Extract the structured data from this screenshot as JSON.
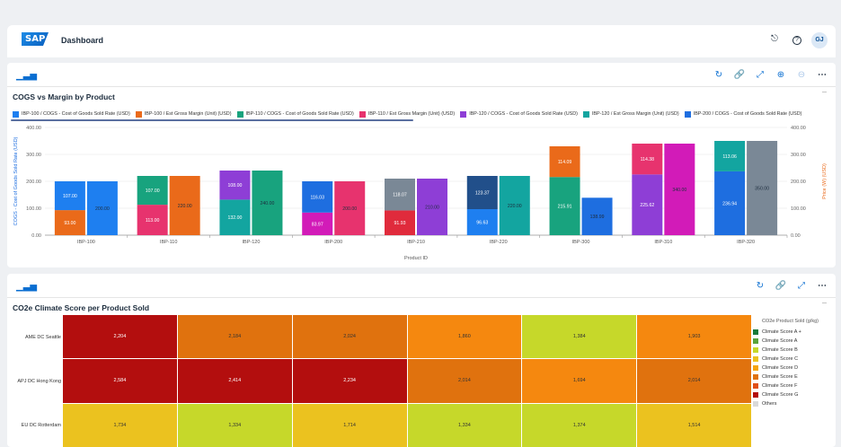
{
  "shell": {
    "logo": "SAP",
    "title": "Dashboard",
    "help_icon": "?",
    "avatar": "GJ"
  },
  "card1": {
    "title": "COGS vs Margin by Product",
    "toolbar_icons": [
      "refresh-icon",
      "link-icon",
      "expand-icon",
      "zoom-in-icon",
      "zoom-out-icon",
      "more-icon"
    ],
    "legend": [
      {
        "label": "IBP-100 / COGS - Cost of Goods Sold Rate (USD)",
        "color": "#1e7ff0"
      },
      {
        "label": "IBP-100 / Est Gross Margin (Unit) (USD)",
        "color": "#ea6a1a"
      },
      {
        "label": "IBP-110 / COGS - Cost of Goods Sold Rate (USD)",
        "color": "#18a37e"
      },
      {
        "label": "IBP-110 / Est Gross Margin (Unit) (USD)",
        "color": "#e7336e"
      },
      {
        "label": "IBP-120 / COGS - Cost of Goods Sold Rate (USD)",
        "color": "#8e3ed6"
      },
      {
        "label": "IBP-120 / Est Gross Margin (Unit) (USD)",
        "color": "#13a5a0"
      },
      {
        "label": "IBP-200 / COGS - Cost of Goods Sold Rate (USD)",
        "color": "#1e6ee0"
      }
    ]
  },
  "chart_data": {
    "type": "bar",
    "categories": [
      "IBP-100",
      "IBP-110",
      "IBP-120",
      "IBP-200",
      "IBP-210",
      "IBP-220",
      "IBP-300",
      "IBP-310",
      "IBP-320"
    ],
    "xlabel": "Product ID",
    "ylabel": "COGS - Cost of Goods Sold Rate (USD)",
    "y2label": "Price (W) (USD)",
    "ylim": [
      0,
      400
    ],
    "y2lim": [
      0,
      400
    ],
    "yticks": [
      "0.00",
      "100.00",
      "200.00",
      "300.00",
      "400.00"
    ],
    "stacked_bars": [
      {
        "category": "IBP-100",
        "segments": [
          {
            "value": 93.0,
            "label": "93.00",
            "color": "#ea6a1a"
          },
          {
            "value": 107.0,
            "label": "107.00",
            "color": "#1e7ff0"
          }
        ]
      },
      {
        "category": "IBP-110",
        "segments": [
          {
            "value": 113.0,
            "label": "113.00",
            "color": "#e7336e"
          },
          {
            "value": 107.0,
            "label": "107.00",
            "color": "#18a37e"
          }
        ]
      },
      {
        "category": "IBP-120",
        "segments": [
          {
            "value": 132.0,
            "label": "132.00",
            "color": "#13a5a0"
          },
          {
            "value": 108.0,
            "label": "108.00",
            "color": "#8e3ed6"
          }
        ]
      },
      {
        "category": "IBP-200",
        "segments": [
          {
            "value": 83.97,
            "label": "83.97",
            "color": "#d21bb8"
          },
          {
            "value": 116.03,
            "label": "116.03",
            "color": "#1e6ee0"
          }
        ]
      },
      {
        "category": "IBP-210",
        "segments": [
          {
            "value": 91.93,
            "label": "91.93",
            "color": "#e02b3c"
          },
          {
            "value": 118.07,
            "label": "118.07",
            "color": "#7a8896"
          }
        ]
      },
      {
        "category": "IBP-220",
        "segments": [
          {
            "value": 96.63,
            "label": "96.63",
            "color": "#1e7ff0"
          },
          {
            "value": 123.37,
            "label": "123.37",
            "color": "#214f8a"
          }
        ]
      },
      {
        "category": "IBP-300",
        "segments": [
          {
            "value": 215.91,
            "label": "215.91",
            "color": "#18a37e"
          },
          {
            "value": 114.09,
            "label": "114.09",
            "color": "#ea6a1a"
          }
        ]
      },
      {
        "category": "IBP-310",
        "segments": [
          {
            "value": 225.62,
            "label": "225.62",
            "color": "#8e3ed6"
          },
          {
            "value": 114.38,
            "label": "114.38",
            "color": "#e7336e"
          }
        ]
      },
      {
        "category": "IBP-320",
        "segments": [
          {
            "value": 236.94,
            "label": "236.94",
            "color": "#1e6ee0"
          },
          {
            "value": 113.06,
            "label": "113.06",
            "color": "#13a5a0"
          }
        ]
      }
    ],
    "single_bars": [
      {
        "category": "IBP-100",
        "value": 200.0,
        "label": "200.00",
        "color": "#1e7ff0"
      },
      {
        "category": "IBP-110",
        "value": 220.0,
        "label": "220.00",
        "color": "#ea6a1a"
      },
      {
        "category": "IBP-120",
        "value": 240.0,
        "label": "240.00",
        "color": "#18a37e"
      },
      {
        "category": "IBP-200",
        "value": 200.0,
        "label": "200.00",
        "color": "#e7336e"
      },
      {
        "category": "IBP-210",
        "value": 210.0,
        "label": "210.00",
        "color": "#8e3ed6"
      },
      {
        "category": "IBP-220",
        "value": 220.0,
        "label": "220.00",
        "color": "#13a5a0"
      },
      {
        "category": "IBP-300",
        "value": 138.99,
        "label": "138.99",
        "color": "#1e6ee0"
      },
      {
        "category": "IBP-310",
        "value": 340.0,
        "label": "340.00",
        "color": "#d21bb8"
      },
      {
        "category": "IBP-320",
        "value": 350.0,
        "label": "350.00",
        "color": "#7a8896"
      }
    ]
  },
  "card2": {
    "title": "CO2e Climate Score per Product Sold",
    "toolbar_icons": [
      "refresh-icon",
      "link-icon",
      "expand-icon",
      "more-icon"
    ],
    "rows": [
      {
        "label": "AME DC Seattle",
        "cells": [
          {
            "v": "2,204",
            "c": "#b30e0e",
            "t": "#fff"
          },
          {
            "v": "2,184",
            "c": "#e0720e",
            "t": "#333"
          },
          {
            "v": "2,024",
            "c": "#e0720e",
            "t": "#333"
          },
          {
            "v": "1,860",
            "c": "#f5880f",
            "t": "#333"
          },
          {
            "v": "1,384",
            "c": "#c6d82a",
            "t": "#333"
          },
          {
            "v": "1,903",
            "c": "#f5880f",
            "t": "#333"
          }
        ]
      },
      {
        "label": "APJ DC Hong Kong",
        "cells": [
          {
            "v": "2,584",
            "c": "#b30e0e",
            "t": "#fff"
          },
          {
            "v": "2,414",
            "c": "#b30e0e",
            "t": "#fff"
          },
          {
            "v": "2,234",
            "c": "#b30e0e",
            "t": "#fff"
          },
          {
            "v": "2,014",
            "c": "#e0720e",
            "t": "#333"
          },
          {
            "v": "1,694",
            "c": "#f5880f",
            "t": "#333"
          },
          {
            "v": "2,014",
            "c": "#e0720e",
            "t": "#333"
          }
        ]
      },
      {
        "label": "EU DC Rotterdam",
        "cells": [
          {
            "v": "1,734",
            "c": "#ebc21f",
            "t": "#333"
          },
          {
            "v": "1,334",
            "c": "#c6d82a",
            "t": "#333"
          },
          {
            "v": "1,714",
            "c": "#ebc21f",
            "t": "#333"
          },
          {
            "v": "1,334",
            "c": "#c6d82a",
            "t": "#333"
          },
          {
            "v": "1,374",
            "c": "#c6d82a",
            "t": "#333"
          },
          {
            "v": "1,514",
            "c": "#ebc21f",
            "t": "#333"
          }
        ]
      }
    ],
    "legend_title": "CO2e Product Sold (g/kg)",
    "legend": [
      {
        "label": "Climate Score A +",
        "color": "#1a7a3a"
      },
      {
        "label": "Climate Score A",
        "color": "#5aa33a"
      },
      {
        "label": "Climate Score B",
        "color": "#c6d82a"
      },
      {
        "label": "Climate Score C",
        "color": "#ebc21f"
      },
      {
        "label": "Climate Score D",
        "color": "#f5a50f"
      },
      {
        "label": "Climate Score E",
        "color": "#e0720e"
      },
      {
        "label": "Climate Score F",
        "color": "#e0501a"
      },
      {
        "label": "Climate Score G",
        "color": "#b30e0e"
      },
      {
        "label": "Others",
        "color": "#d9d9d9"
      }
    ]
  }
}
